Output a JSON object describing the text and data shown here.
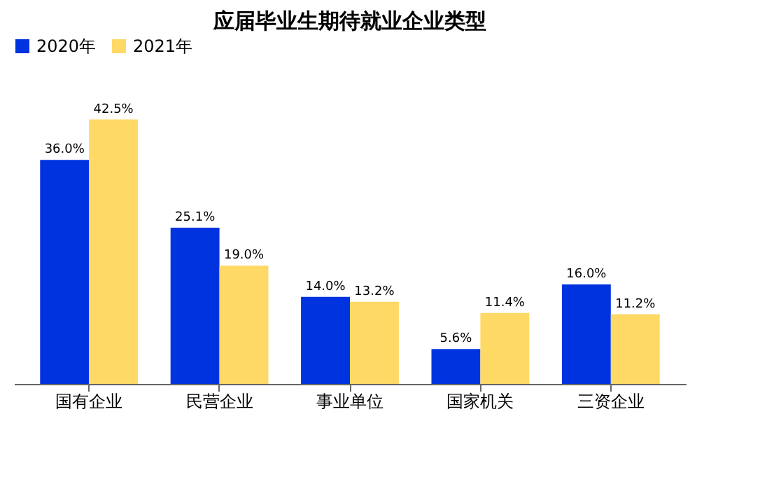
{
  "chart_data": {
    "type": "bar",
    "title": "应届毕业生期待就业企业类型",
    "categories": [
      "国有企业",
      "民营企业",
      "事业单位",
      "国家机关",
      "三资企业"
    ],
    "series": [
      {
        "name": "2020年",
        "color": "#0033e0",
        "values": [
          36.0,
          25.1,
          14.0,
          5.6,
          16.0
        ],
        "value_labels": [
          "36.0%",
          "25.1%",
          "14.0%",
          "5.6%",
          "16.0%"
        ]
      },
      {
        "name": "2021年",
        "color": "#ffd966",
        "values": [
          42.5,
          19.0,
          13.2,
          11.4,
          11.2
        ],
        "value_labels": [
          "42.5%",
          "19.0%",
          "13.2%",
          "11.4%",
          "11.2%"
        ]
      }
    ],
    "legend": "top",
    "grid": false
  }
}
